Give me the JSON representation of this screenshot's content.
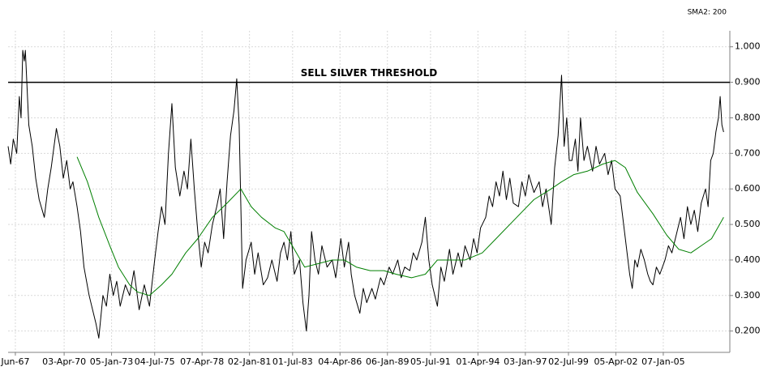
{
  "chart_data": {
    "type": "line",
    "grid": true,
    "xlim": [
      1967.0,
      2008.86
    ],
    "ylim": [
      0.14,
      1.045
    ],
    "xticks": [
      {
        "value": 1967.42,
        "label": "Jun-67"
      },
      {
        "value": 1970.25,
        "label": "03-Apr-70"
      },
      {
        "value": 1973.0,
        "label": "05-Jan-73"
      },
      {
        "value": 1975.5,
        "label": "04-Jul-75"
      },
      {
        "value": 1978.25,
        "label": "07-Apr-78"
      },
      {
        "value": 1981.0,
        "label": "02-Jan-81"
      },
      {
        "value": 1983.5,
        "label": "01-Jul-83"
      },
      {
        "value": 1986.25,
        "label": "04-Apr-86"
      },
      {
        "value": 1989.0,
        "label": "06-Jan-89"
      },
      {
        "value": 1991.5,
        "label": "05-Jul-91"
      },
      {
        "value": 1994.25,
        "label": "01-Apr-94"
      },
      {
        "value": 1997.0,
        "label": "03-Jan-97"
      },
      {
        "value": 1999.5,
        "label": "02-Jul-99"
      },
      {
        "value": 2002.25,
        "label": "05-Apr-02"
      },
      {
        "value": 2005.0,
        "label": "07-Jan-05"
      }
    ],
    "yticks": [
      {
        "value": 0.2,
        "label": "0.200"
      },
      {
        "value": 0.3,
        "label": "0.300"
      },
      {
        "value": 0.4,
        "label": "0.400"
      },
      {
        "value": 0.5,
        "label": "0.500"
      },
      {
        "value": 0.6,
        "label": "0.600"
      },
      {
        "value": 0.7,
        "label": "0.700"
      },
      {
        "value": 0.8,
        "label": "0.800"
      },
      {
        "value": 0.9,
        "label": "0.900"
      },
      {
        "value": 1.0,
        "label": "1.000"
      }
    ],
    "annotations": [
      {
        "text": "SELL SILVER THRESHOLD",
        "y": 0.9,
        "color": "#000000"
      }
    ],
    "series": [
      {
        "color": "#000000",
        "x": [
          1967.0,
          1967.15,
          1967.3,
          1967.5,
          1967.65,
          1967.75,
          1967.85,
          1967.94,
          1968.0,
          1968.2,
          1968.4,
          1968.6,
          1968.8,
          1969.1,
          1969.3,
          1969.5,
          1969.8,
          1970.0,
          1970.2,
          1970.4,
          1970.6,
          1970.76,
          1971.0,
          1971.2,
          1971.4,
          1971.7,
          1971.9,
          1972.1,
          1972.26,
          1972.5,
          1972.7,
          1972.9,
          1973.1,
          1973.3,
          1973.5,
          1973.8,
          1974.05,
          1974.3,
          1974.6,
          1974.9,
          1975.2,
          1975.5,
          1975.7,
          1975.9,
          1976.1,
          1976.3,
          1976.5,
          1976.7,
          1976.96,
          1977.2,
          1977.4,
          1977.6,
          1977.8,
          1978.0,
          1978.2,
          1978.4,
          1978.6,
          1978.85,
          1979.1,
          1979.3,
          1979.5,
          1979.7,
          1979.9,
          1980.1,
          1980.26,
          1980.4,
          1980.6,
          1980.8,
          1981.1,
          1981.3,
          1981.5,
          1981.8,
          1982.05,
          1982.3,
          1982.6,
          1982.8,
          1983.0,
          1983.2,
          1983.4,
          1983.6,
          1983.9,
          1984.1,
          1984.3,
          1984.45,
          1984.6,
          1984.8,
          1985.0,
          1985.2,
          1985.5,
          1985.8,
          1986.0,
          1986.3,
          1986.5,
          1986.75,
          1986.9,
          1987.1,
          1987.4,
          1987.6,
          1987.8,
          1988.1,
          1988.3,
          1988.6,
          1988.8,
          1989.1,
          1989.3,
          1989.6,
          1989.8,
          1990.0,
          1990.3,
          1990.5,
          1990.7,
          1991.0,
          1991.2,
          1991.4,
          1991.6,
          1991.9,
          1992.1,
          1992.3,
          1992.6,
          1992.8,
          1993.1,
          1993.3,
          1993.5,
          1993.8,
          1994.0,
          1994.2,
          1994.4,
          1994.7,
          1994.9,
          1995.1,
          1995.3,
          1995.5,
          1995.7,
          1995.9,
          1996.1,
          1996.3,
          1996.6,
          1996.8,
          1997.0,
          1997.2,
          1997.5,
          1997.8,
          1998.0,
          1998.2,
          1998.5,
          1998.7,
          1998.9,
          1999.1,
          1999.25,
          1999.4,
          1999.55,
          1999.7,
          1999.9,
          2000.05,
          2000.2,
          2000.4,
          2000.6,
          2000.9,
          2001.1,
          2001.3,
          2001.6,
          2001.8,
          2002.0,
          2002.2,
          2002.5,
          2002.7,
          2002.9,
          2003.05,
          2003.2,
          2003.35,
          2003.5,
          2003.7,
          2003.9,
          2004.1,
          2004.25,
          2004.4,
          2004.6,
          2004.8,
          2005.1,
          2005.3,
          2005.5,
          2005.8,
          2006.0,
          2006.2,
          2006.4,
          2006.6,
          2006.8,
          2007.0,
          2007.2,
          2007.45,
          2007.6,
          2007.75,
          2007.9,
          2008.05,
          2008.2,
          2008.3,
          2008.4,
          2008.5
        ],
        "values": [
          0.72,
          0.67,
          0.74,
          0.7,
          0.86,
          0.8,
          0.99,
          0.96,
          0.99,
          0.78,
          0.72,
          0.63,
          0.57,
          0.52,
          0.6,
          0.66,
          0.77,
          0.72,
          0.63,
          0.68,
          0.6,
          0.62,
          0.55,
          0.48,
          0.38,
          0.3,
          0.26,
          0.22,
          0.18,
          0.3,
          0.27,
          0.36,
          0.3,
          0.34,
          0.27,
          0.33,
          0.3,
          0.37,
          0.26,
          0.33,
          0.27,
          0.4,
          0.48,
          0.55,
          0.5,
          0.7,
          0.84,
          0.66,
          0.58,
          0.65,
          0.6,
          0.74,
          0.6,
          0.48,
          0.38,
          0.45,
          0.42,
          0.5,
          0.55,
          0.6,
          0.46,
          0.62,
          0.75,
          0.82,
          0.91,
          0.78,
          0.32,
          0.4,
          0.45,
          0.36,
          0.42,
          0.33,
          0.35,
          0.4,
          0.34,
          0.42,
          0.45,
          0.4,
          0.48,
          0.36,
          0.4,
          0.28,
          0.2,
          0.3,
          0.48,
          0.4,
          0.36,
          0.44,
          0.38,
          0.4,
          0.35,
          0.46,
          0.38,
          0.45,
          0.36,
          0.3,
          0.25,
          0.32,
          0.28,
          0.32,
          0.29,
          0.35,
          0.33,
          0.38,
          0.36,
          0.4,
          0.35,
          0.38,
          0.37,
          0.42,
          0.4,
          0.45,
          0.52,
          0.4,
          0.33,
          0.27,
          0.38,
          0.34,
          0.43,
          0.36,
          0.42,
          0.38,
          0.44,
          0.4,
          0.46,
          0.42,
          0.49,
          0.52,
          0.58,
          0.55,
          0.62,
          0.58,
          0.65,
          0.57,
          0.63,
          0.56,
          0.55,
          0.62,
          0.58,
          0.64,
          0.59,
          0.62,
          0.55,
          0.6,
          0.5,
          0.66,
          0.75,
          0.92,
          0.72,
          0.8,
          0.68,
          0.68,
          0.74,
          0.65,
          0.8,
          0.68,
          0.72,
          0.65,
          0.72,
          0.67,
          0.7,
          0.64,
          0.68,
          0.6,
          0.58,
          0.5,
          0.42,
          0.36,
          0.32,
          0.4,
          0.38,
          0.43,
          0.4,
          0.36,
          0.34,
          0.33,
          0.38,
          0.36,
          0.4,
          0.44,
          0.42,
          0.48,
          0.52,
          0.46,
          0.55,
          0.5,
          0.54,
          0.48,
          0.56,
          0.6,
          0.55,
          0.68,
          0.7,
          0.76,
          0.8,
          0.86,
          0.78,
          0.76
        ]
      },
      {
        "name": "SMA2: 200",
        "color": "#007f00",
        "x": [
          1971.0,
          1971.6,
          1972.26,
          1972.9,
          1973.4,
          1974.05,
          1974.5,
          1975.2,
          1975.9,
          1976.5,
          1977.3,
          1978.0,
          1978.85,
          1979.7,
          1980.5,
          1981.1,
          1981.7,
          1982.5,
          1983.0,
          1983.6,
          1984.2,
          1985.0,
          1985.8,
          1986.5,
          1987.2,
          1988.0,
          1988.8,
          1989.5,
          1990.4,
          1991.2,
          1991.9,
          1992.6,
          1993.5,
          1994.5,
          1995.5,
          1996.5,
          1997.5,
          1998.5,
          1999.1,
          1999.8,
          2000.6,
          2001.5,
          2002.2,
          2002.8,
          2003.5,
          2004.4,
          2005.2,
          2005.9,
          2006.6,
          2007.2,
          2007.8,
          2008.5
        ],
        "values": [
          0.69,
          0.62,
          0.52,
          0.44,
          0.38,
          0.33,
          0.31,
          0.3,
          0.33,
          0.36,
          0.42,
          0.46,
          0.52,
          0.56,
          0.6,
          0.55,
          0.52,
          0.49,
          0.48,
          0.43,
          0.38,
          0.39,
          0.4,
          0.4,
          0.38,
          0.37,
          0.37,
          0.36,
          0.35,
          0.36,
          0.4,
          0.4,
          0.4,
          0.42,
          0.47,
          0.52,
          0.57,
          0.6,
          0.62,
          0.64,
          0.65,
          0.67,
          0.68,
          0.66,
          0.59,
          0.53,
          0.47,
          0.43,
          0.42,
          0.44,
          0.46,
          0.52
        ]
      }
    ]
  }
}
